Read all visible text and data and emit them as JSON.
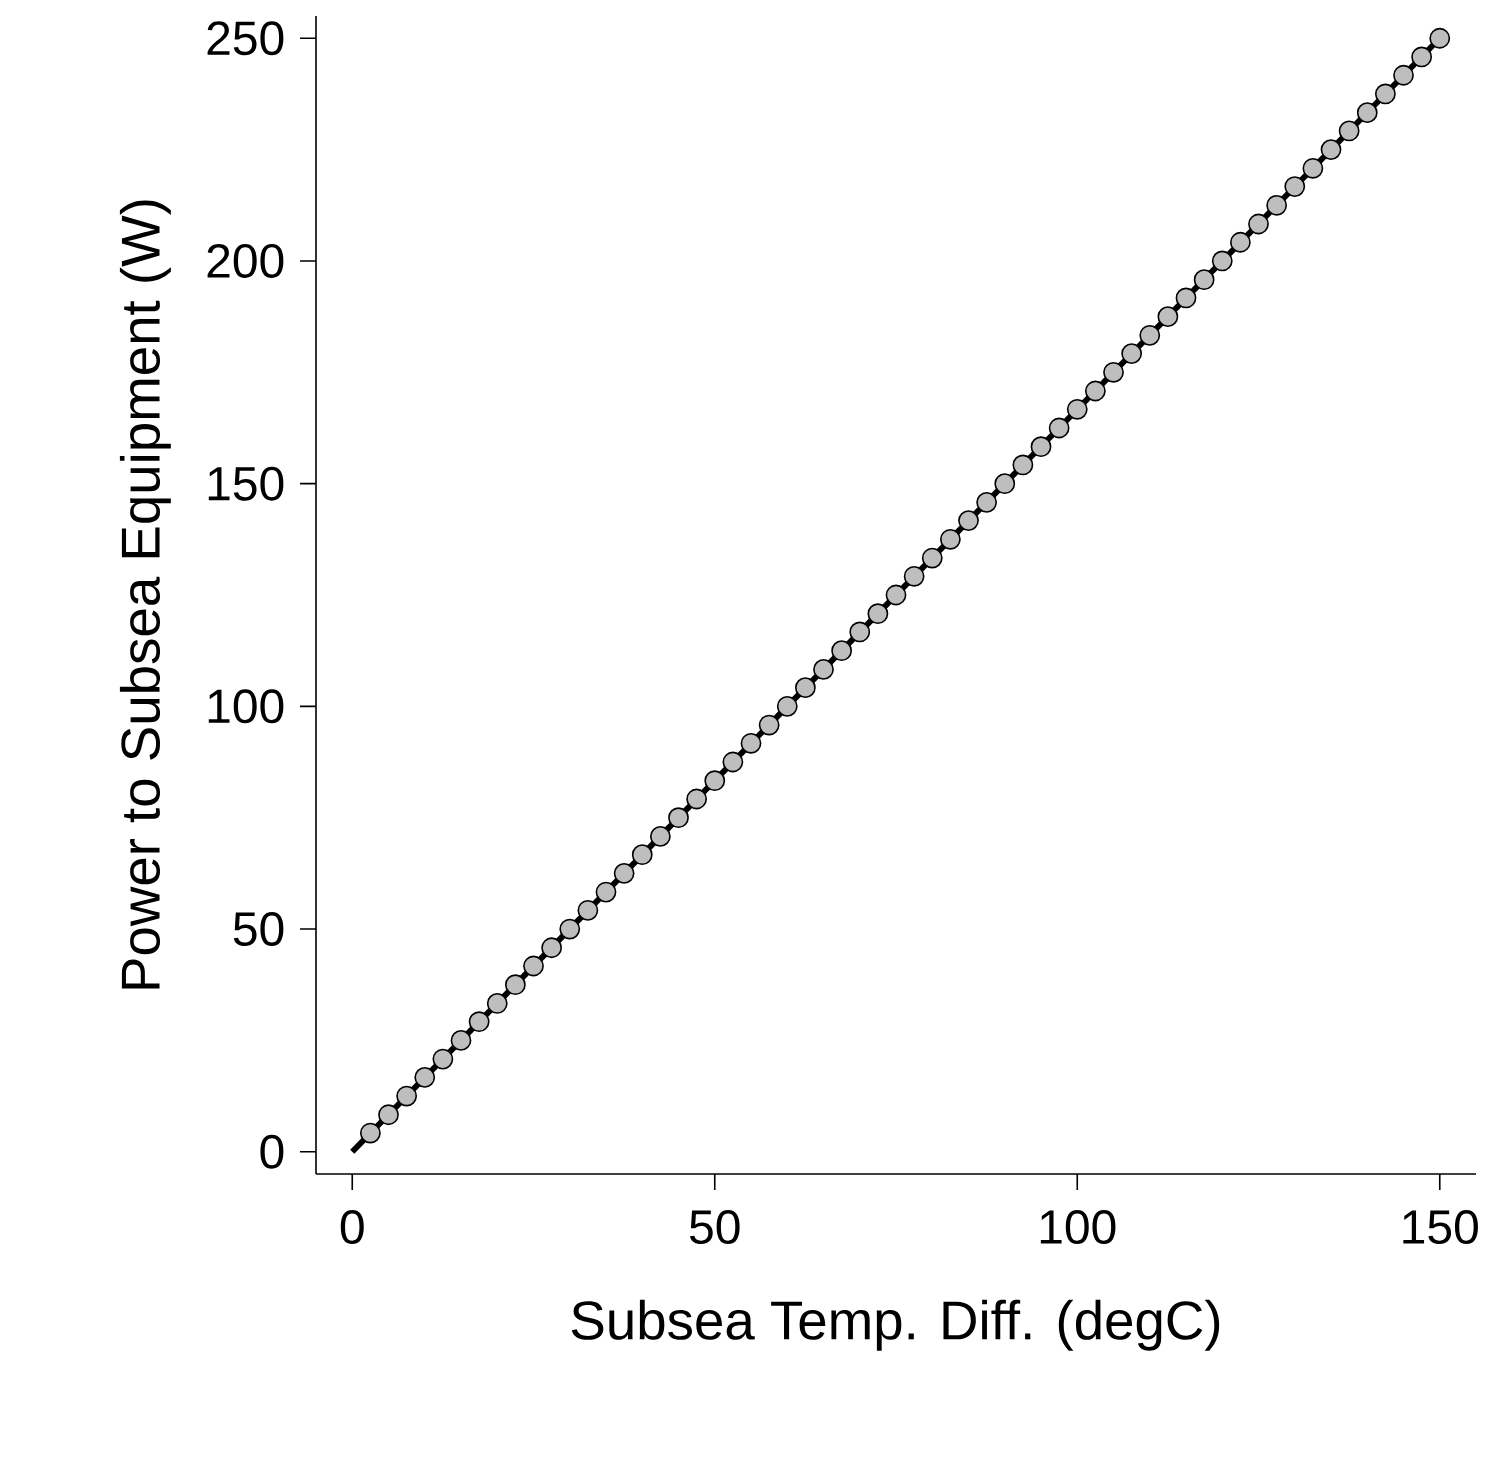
{
  "chart_data": {
    "type": "scatter",
    "xlabel": "Subsea Temp. Diff. (degC)",
    "ylabel": "Power to Subsea Equipment (W)",
    "xlim": [
      -5,
      155
    ],
    "ylim": [
      -5,
      255
    ],
    "xticks": [
      0,
      50,
      100,
      150
    ],
    "yticks": [
      0,
      50,
      100,
      150,
      200,
      250
    ],
    "series": [
      {
        "color": "#bebebe",
        "marker": "circle",
        "x": [
          2.5,
          5,
          7.5,
          10,
          12.5,
          15,
          17.5,
          20,
          22.5,
          25,
          27.5,
          30,
          32.5,
          35,
          37.5,
          40,
          42.5,
          45,
          47.5,
          50,
          52.5,
          55,
          57.5,
          60,
          62.5,
          65,
          67.5,
          70,
          72.5,
          75,
          77.5,
          80,
          82.5,
          85,
          87.5,
          90,
          92.5,
          95,
          97.5,
          100,
          102.5,
          105,
          107.5,
          110,
          112.5,
          115,
          117.5,
          120,
          122.5,
          125,
          127.5,
          130,
          132.5,
          135,
          137.5,
          140,
          142.5,
          145,
          147.5,
          150
        ],
        "values": [
          4.2,
          8.3,
          12.5,
          16.7,
          20.8,
          25,
          29.2,
          33.3,
          37.5,
          41.7,
          45.8,
          50,
          54.2,
          58.3,
          62.5,
          66.7,
          70.8,
          75,
          79.2,
          83.3,
          87.5,
          91.7,
          95.8,
          100,
          104.2,
          108.3,
          112.5,
          116.7,
          120.8,
          125,
          129.2,
          133.3,
          137.5,
          141.7,
          145.8,
          150,
          154.2,
          158.3,
          162.5,
          166.7,
          170.8,
          175,
          179.2,
          183.3,
          187.5,
          191.7,
          195.8,
          200,
          204.2,
          208.3,
          212.5,
          216.7,
          220.8,
          225,
          229.2,
          233.3,
          237.5,
          241.7,
          245.8,
          250
        ]
      },
      {
        "type": "line",
        "color": "#000000",
        "marker": "none",
        "line_style": "solid",
        "x": [
          0,
          150
        ],
        "values": [
          0,
          250
        ]
      }
    ]
  }
}
